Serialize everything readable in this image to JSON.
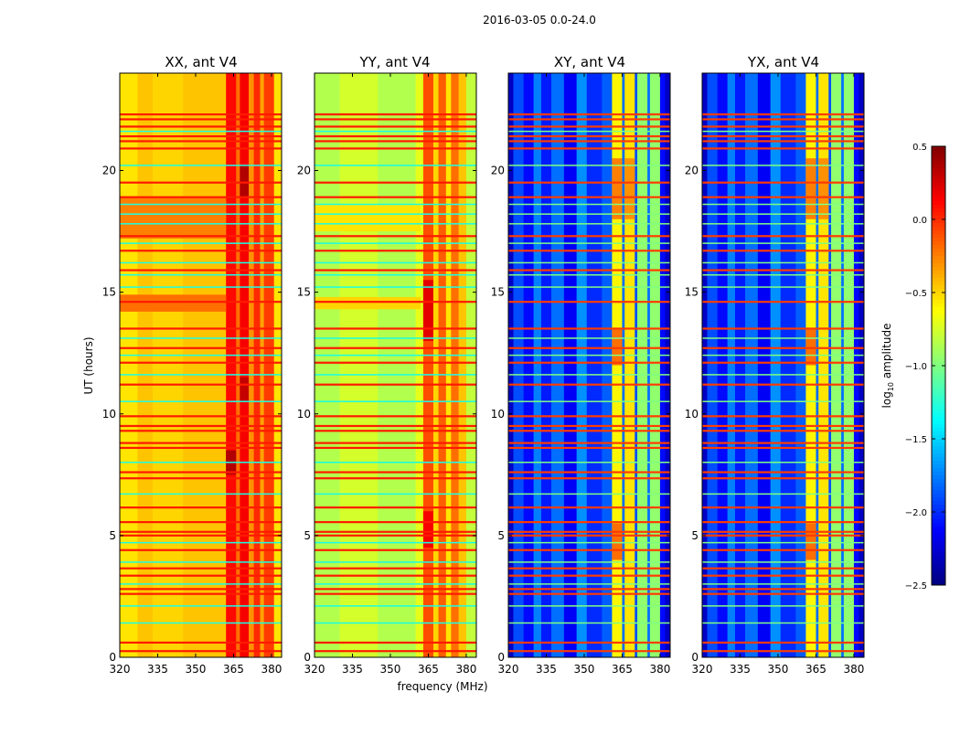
{
  "chart_data": {
    "type": "heatmap",
    "title": "2016-03-05 0.0-24.0",
    "xlabel": "frequency (MHz)",
    "ylabel": "UT (hours)",
    "xlim": [
      320,
      384
    ],
    "ylim": [
      0,
      24
    ],
    "xticks": [
      "320",
      "335",
      "350",
      "365",
      "380"
    ],
    "xtick_values": [
      320,
      335,
      350,
      365,
      380
    ],
    "yticks": [
      "0",
      "5",
      "10",
      "15",
      "20"
    ],
    "ytick_values": [
      0,
      5,
      10,
      15,
      20
    ],
    "colorbar": {
      "label": "log10 amplitude",
      "label_main": "log",
      "label_sub": "10",
      "label_rest": " amplitude",
      "colormap": "jet",
      "range": [
        -2.5,
        0.5
      ],
      "ticks": [
        "0.5",
        "0.0",
        "−0.5",
        "−1.0",
        "−1.5",
        "−2.0",
        "−2.5"
      ],
      "tick_values": [
        0.5,
        0.0,
        -0.5,
        -1.0,
        -1.5,
        -2.0,
        -2.5
      ]
    },
    "rfi_red_hours": [
      22.3,
      22.1,
      21.8,
      21.4,
      21.2,
      20.9,
      19.5,
      18.9,
      17.3,
      16.7,
      15.9,
      14.6,
      13.5,
      12.7,
      12.1,
      11.2,
      9.9,
      9.5,
      9.3,
      8.8,
      8.6,
      7.6,
      7.35,
      6.15,
      5.55,
      5.15,
      5.0,
      4.4,
      3.65,
      3.35,
      2.8,
      2.6,
      0.6,
      0.25
    ],
    "rfi_green_hours": [
      21.6,
      20.2,
      18.6,
      18.2,
      17.8,
      17.0,
      16.2,
      15.7,
      15.2,
      13.1,
      12.4,
      11.6,
      10.5,
      8.0,
      6.7,
      4.7,
      3.9,
      3.0,
      2.1,
      1.4
    ],
    "panels": [
      {
        "title": "XX, ant V4",
        "rfi_red_value": 0.05,
        "rfi_green_value": -1.3,
        "segments": [
          [
            320,
            327,
            -0.55
          ],
          [
            327,
            333,
            -0.45
          ],
          [
            333,
            345,
            -0.5
          ],
          [
            345,
            362,
            -0.45
          ],
          [
            362,
            366,
            0.1
          ],
          [
            366,
            367.5,
            -0.2
          ],
          [
            367.5,
            371,
            0.15
          ],
          [
            371,
            373,
            -0.3
          ],
          [
            373,
            375.5,
            0.0
          ],
          [
            375.5,
            377,
            -0.35
          ],
          [
            377,
            381,
            -0.05
          ],
          [
            381,
            384,
            -0.55
          ]
        ],
        "patches": [
          [
            320,
            362,
            17.2,
            18.9,
            -0.25
          ],
          [
            320,
            362,
            14.2,
            14.9,
            -0.2
          ],
          [
            362,
            366,
            7.5,
            8.5,
            0.35
          ],
          [
            367.5,
            371,
            18.9,
            20.2,
            0.35
          ],
          [
            367.5,
            371,
            10.5,
            11.5,
            0.3
          ]
        ]
      },
      {
        "title": "YY, ant V4",
        "rfi_red_value": 0.05,
        "rfi_green_value": -1.3,
        "segments": [
          [
            320,
            330,
            -0.85
          ],
          [
            330,
            345,
            -0.75
          ],
          [
            345,
            360,
            -0.85
          ],
          [
            360,
            363,
            -0.7
          ],
          [
            363,
            367,
            -0.1
          ],
          [
            367,
            369,
            -0.5
          ],
          [
            369,
            372,
            -0.15
          ],
          [
            372,
            374,
            -0.55
          ],
          [
            374,
            377,
            -0.2
          ],
          [
            377,
            380,
            -0.45
          ],
          [
            380,
            384,
            -0.8
          ]
        ],
        "patches": [
          [
            320,
            362,
            17.5,
            18.6,
            -0.55
          ],
          [
            320,
            362,
            14.3,
            14.8,
            -0.5
          ],
          [
            363,
            367,
            13.0,
            15.5,
            0.2
          ],
          [
            363,
            367,
            4.5,
            6.0,
            0.15
          ]
        ]
      },
      {
        "title": "XY, ant V4",
        "rfi_red_value": -0.05,
        "rfi_green_value": -1.0,
        "segments": [
          [
            320,
            322,
            -2.3
          ],
          [
            322,
            326,
            -1.9
          ],
          [
            326,
            330,
            -2.1
          ],
          [
            330,
            333,
            -1.75
          ],
          [
            333,
            337,
            -2.05
          ],
          [
            337,
            342,
            -1.8
          ],
          [
            342,
            347,
            -2.15
          ],
          [
            347,
            351,
            -1.7
          ],
          [
            351,
            357,
            -2.0
          ],
          [
            357,
            361,
            -1.85
          ],
          [
            361,
            365,
            -0.6
          ],
          [
            365,
            366,
            -1.8
          ],
          [
            366,
            370,
            -0.55
          ],
          [
            370,
            371,
            -1.9
          ],
          [
            371,
            375,
            -0.95
          ],
          [
            375,
            376,
            -1.8
          ],
          [
            376,
            380,
            -0.95
          ],
          [
            380,
            382,
            -2.1
          ],
          [
            382,
            384,
            -2.3
          ]
        ],
        "patches": [
          [
            361,
            365,
            18.0,
            20.5,
            -0.25
          ],
          [
            366,
            370,
            18.0,
            20.5,
            -0.3
          ],
          [
            361,
            365,
            12.0,
            13.5,
            -0.2
          ],
          [
            361,
            365,
            4.0,
            5.5,
            -0.2
          ]
        ]
      },
      {
        "title": "YX, ant V4",
        "rfi_red_value": -0.05,
        "rfi_green_value": -1.0,
        "segments": [
          [
            320,
            322,
            -2.3
          ],
          [
            322,
            326,
            -1.9
          ],
          [
            326,
            330,
            -2.1
          ],
          [
            330,
            333,
            -1.75
          ],
          [
            333,
            337,
            -2.05
          ],
          [
            337,
            342,
            -1.8
          ],
          [
            342,
            347,
            -2.15
          ],
          [
            347,
            351,
            -1.7
          ],
          [
            351,
            357,
            -2.0
          ],
          [
            357,
            361,
            -1.85
          ],
          [
            361,
            365,
            -0.6
          ],
          [
            365,
            366,
            -1.8
          ],
          [
            366,
            370,
            -0.55
          ],
          [
            370,
            371,
            -1.9
          ],
          [
            371,
            375,
            -0.95
          ],
          [
            375,
            376,
            -1.8
          ],
          [
            376,
            380,
            -0.95
          ],
          [
            380,
            382,
            -2.1
          ],
          [
            382,
            384,
            -2.3
          ]
        ],
        "patches": [
          [
            361,
            365,
            18.0,
            20.5,
            -0.25
          ],
          [
            366,
            370,
            18.0,
            20.5,
            -0.3
          ],
          [
            361,
            365,
            12.0,
            13.5,
            -0.2
          ],
          [
            361,
            365,
            4.0,
            5.5,
            -0.2
          ]
        ]
      }
    ]
  }
}
